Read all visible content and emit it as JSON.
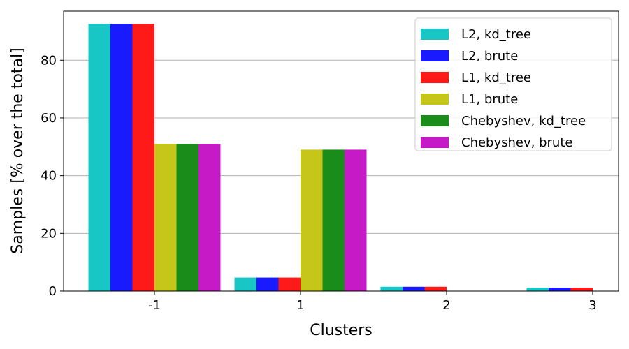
{
  "chart_data": {
    "type": "bar",
    "title": "",
    "xlabel": "Clusters",
    "ylabel": "Samples [% over the total]",
    "categories": [
      "-1",
      "1",
      "2",
      "3"
    ],
    "ylim": [
      0,
      97
    ],
    "yticks": [
      0,
      20,
      40,
      60,
      80
    ],
    "grid": "horizontal",
    "legend_position": "top-right",
    "series": [
      {
        "name": "L2, kd_tree",
        "color": "#19c6c6",
        "values": [
          92.6,
          4.7,
          1.5,
          1.2
        ]
      },
      {
        "name": "L2, brute",
        "color": "#1a1aff",
        "values": [
          92.6,
          4.7,
          1.5,
          1.2
        ]
      },
      {
        "name": "L1, kd_tree",
        "color": "#ff1a1a",
        "values": [
          92.6,
          4.7,
          1.5,
          1.2
        ]
      },
      {
        "name": "L1, brute",
        "color": "#c6c61a",
        "values": [
          51.0,
          49.0,
          0,
          0
        ]
      },
      {
        "name": "Chebyshev, kd_tree",
        "color": "#1a8c1a",
        "values": [
          51.0,
          49.0,
          0,
          0
        ]
      },
      {
        "name": "Chebyshev, brute",
        "color": "#c61ac6",
        "values": [
          51.0,
          49.0,
          0,
          0
        ]
      }
    ]
  }
}
